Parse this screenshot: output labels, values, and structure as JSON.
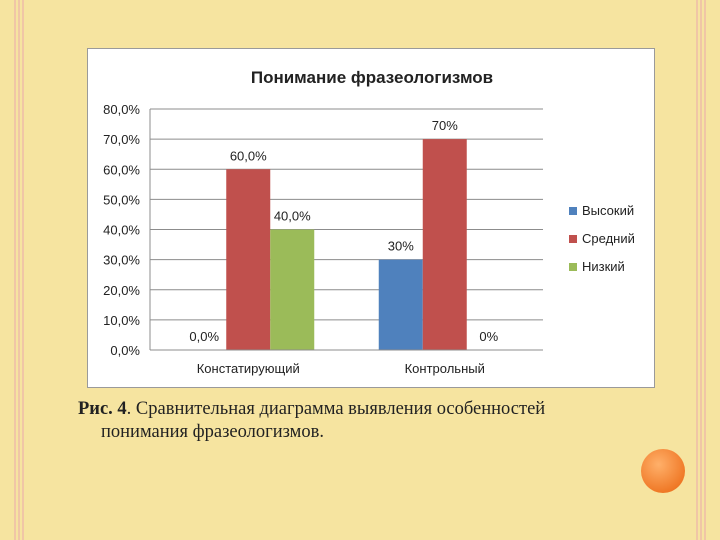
{
  "chart_data": {
    "type": "bar",
    "title": "Понимание фразеологизмов",
    "categories": [
      "Констатирующий",
      "Контрольный"
    ],
    "series": [
      {
        "name": "Высокий",
        "values": [
          0,
          30
        ],
        "labels": [
          "0,0%",
          "30%"
        ],
        "color": "#4f81bd"
      },
      {
        "name": "Средний",
        "values": [
          60,
          70
        ],
        "labels": [
          "60,0%",
          "70%"
        ],
        "color": "#c0504d"
      },
      {
        "name": "Низкий",
        "values": [
          40,
          0
        ],
        "labels": [
          "40,0%",
          "0%"
        ],
        "color": "#9bbb59"
      }
    ],
    "ylim": [
      0,
      80
    ],
    "yticks": [
      0,
      10,
      20,
      30,
      40,
      50,
      60,
      70,
      80
    ],
    "ytick_labels": [
      "0,0%",
      "10,0%",
      "20,0%",
      "30,0%",
      "40,0%",
      "50,0%",
      "60,0%",
      "70,0%",
      "80,0%"
    ],
    "grid": true,
    "legend_position": "right"
  },
  "caption": {
    "label": "Рис. 4",
    "text_line1": ". Сравнительная диаграмма выявления особенностей",
    "text_line2": "понимания фразеологизмов."
  }
}
